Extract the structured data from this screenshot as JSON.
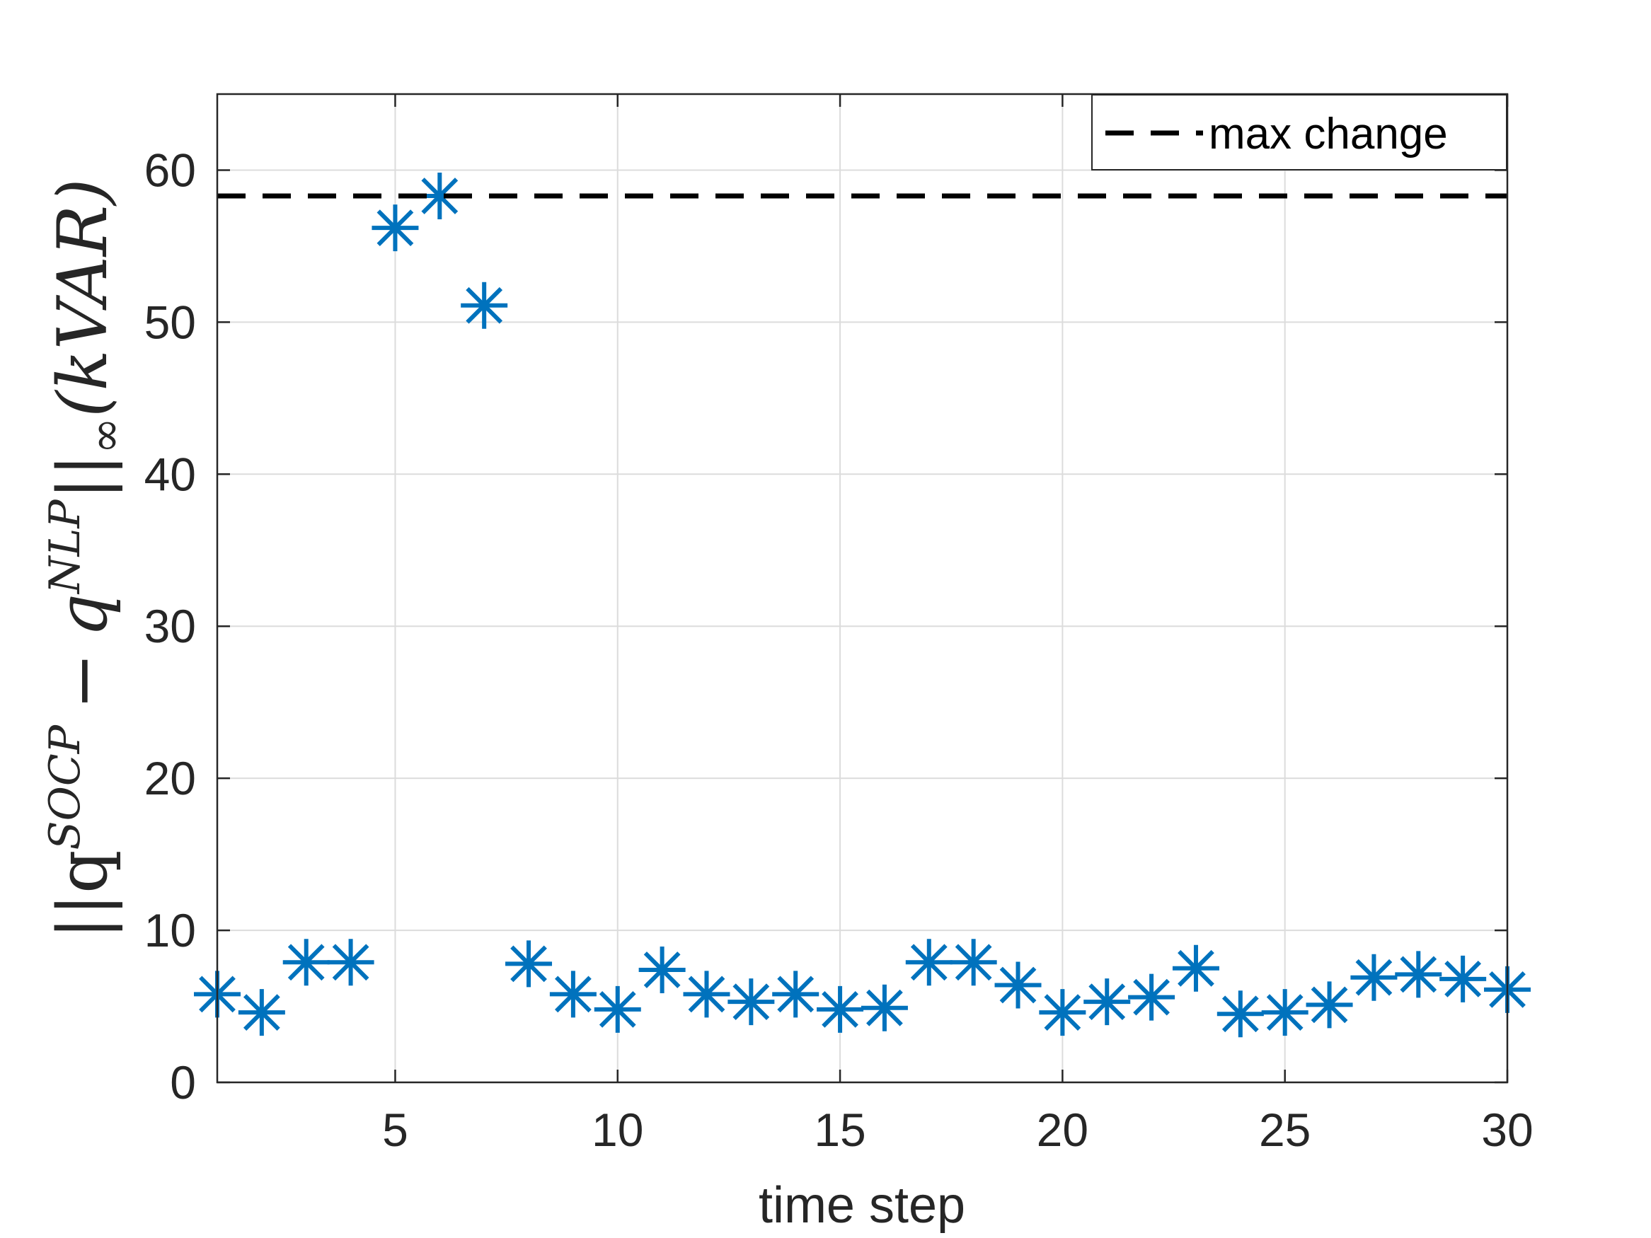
{
  "chart_data": {
    "type": "scatter",
    "xlabel": "time step",
    "ylabel": "||q^{SOCP} - q^{NLP}||_∞(kVAR)",
    "ylabel_parts": {
      "bars_left": "||q",
      "sup_socp": "SOCP",
      "minus": "−",
      "q": "q",
      "sup_nlp": "NLP",
      "bars_right": "||",
      "sub_inf": "∞",
      "unit": "(kVAR)"
    },
    "xlim": [
      1,
      30
    ],
    "ylim": [
      0,
      65
    ],
    "xticks": [
      5,
      10,
      15,
      20,
      25,
      30
    ],
    "yticks": [
      0,
      10,
      20,
      30,
      40,
      50,
      60
    ],
    "grid": true,
    "legend_position": "top-right",
    "series": [
      {
        "marker": "asterisk",
        "color": "#0072BD",
        "x": [
          1,
          2,
          3,
          4,
          5,
          6,
          7,
          8,
          9,
          10,
          11,
          12,
          13,
          14,
          15,
          16,
          17,
          18,
          19,
          20,
          21,
          22,
          23,
          24,
          25,
          26,
          27,
          28,
          29,
          30
        ],
        "y": [
          5.8,
          4.6,
          7.9,
          7.9,
          56.2,
          58.3,
          51.1,
          7.8,
          5.8,
          4.8,
          7.4,
          5.8,
          5.3,
          5.8,
          4.8,
          4.9,
          7.9,
          7.9,
          6.4,
          4.6,
          5.3,
          5.6,
          7.5,
          4.5,
          4.6,
          5.1,
          6.9,
          7.1,
          6.8,
          6.1
        ]
      }
    ],
    "reference_lines": [
      {
        "name": "max change",
        "y": 58.3,
        "style": "dashed",
        "color": "#000000"
      }
    ],
    "legend": [
      {
        "label": "max change",
        "style": "dashed",
        "color": "#000000"
      }
    ]
  }
}
